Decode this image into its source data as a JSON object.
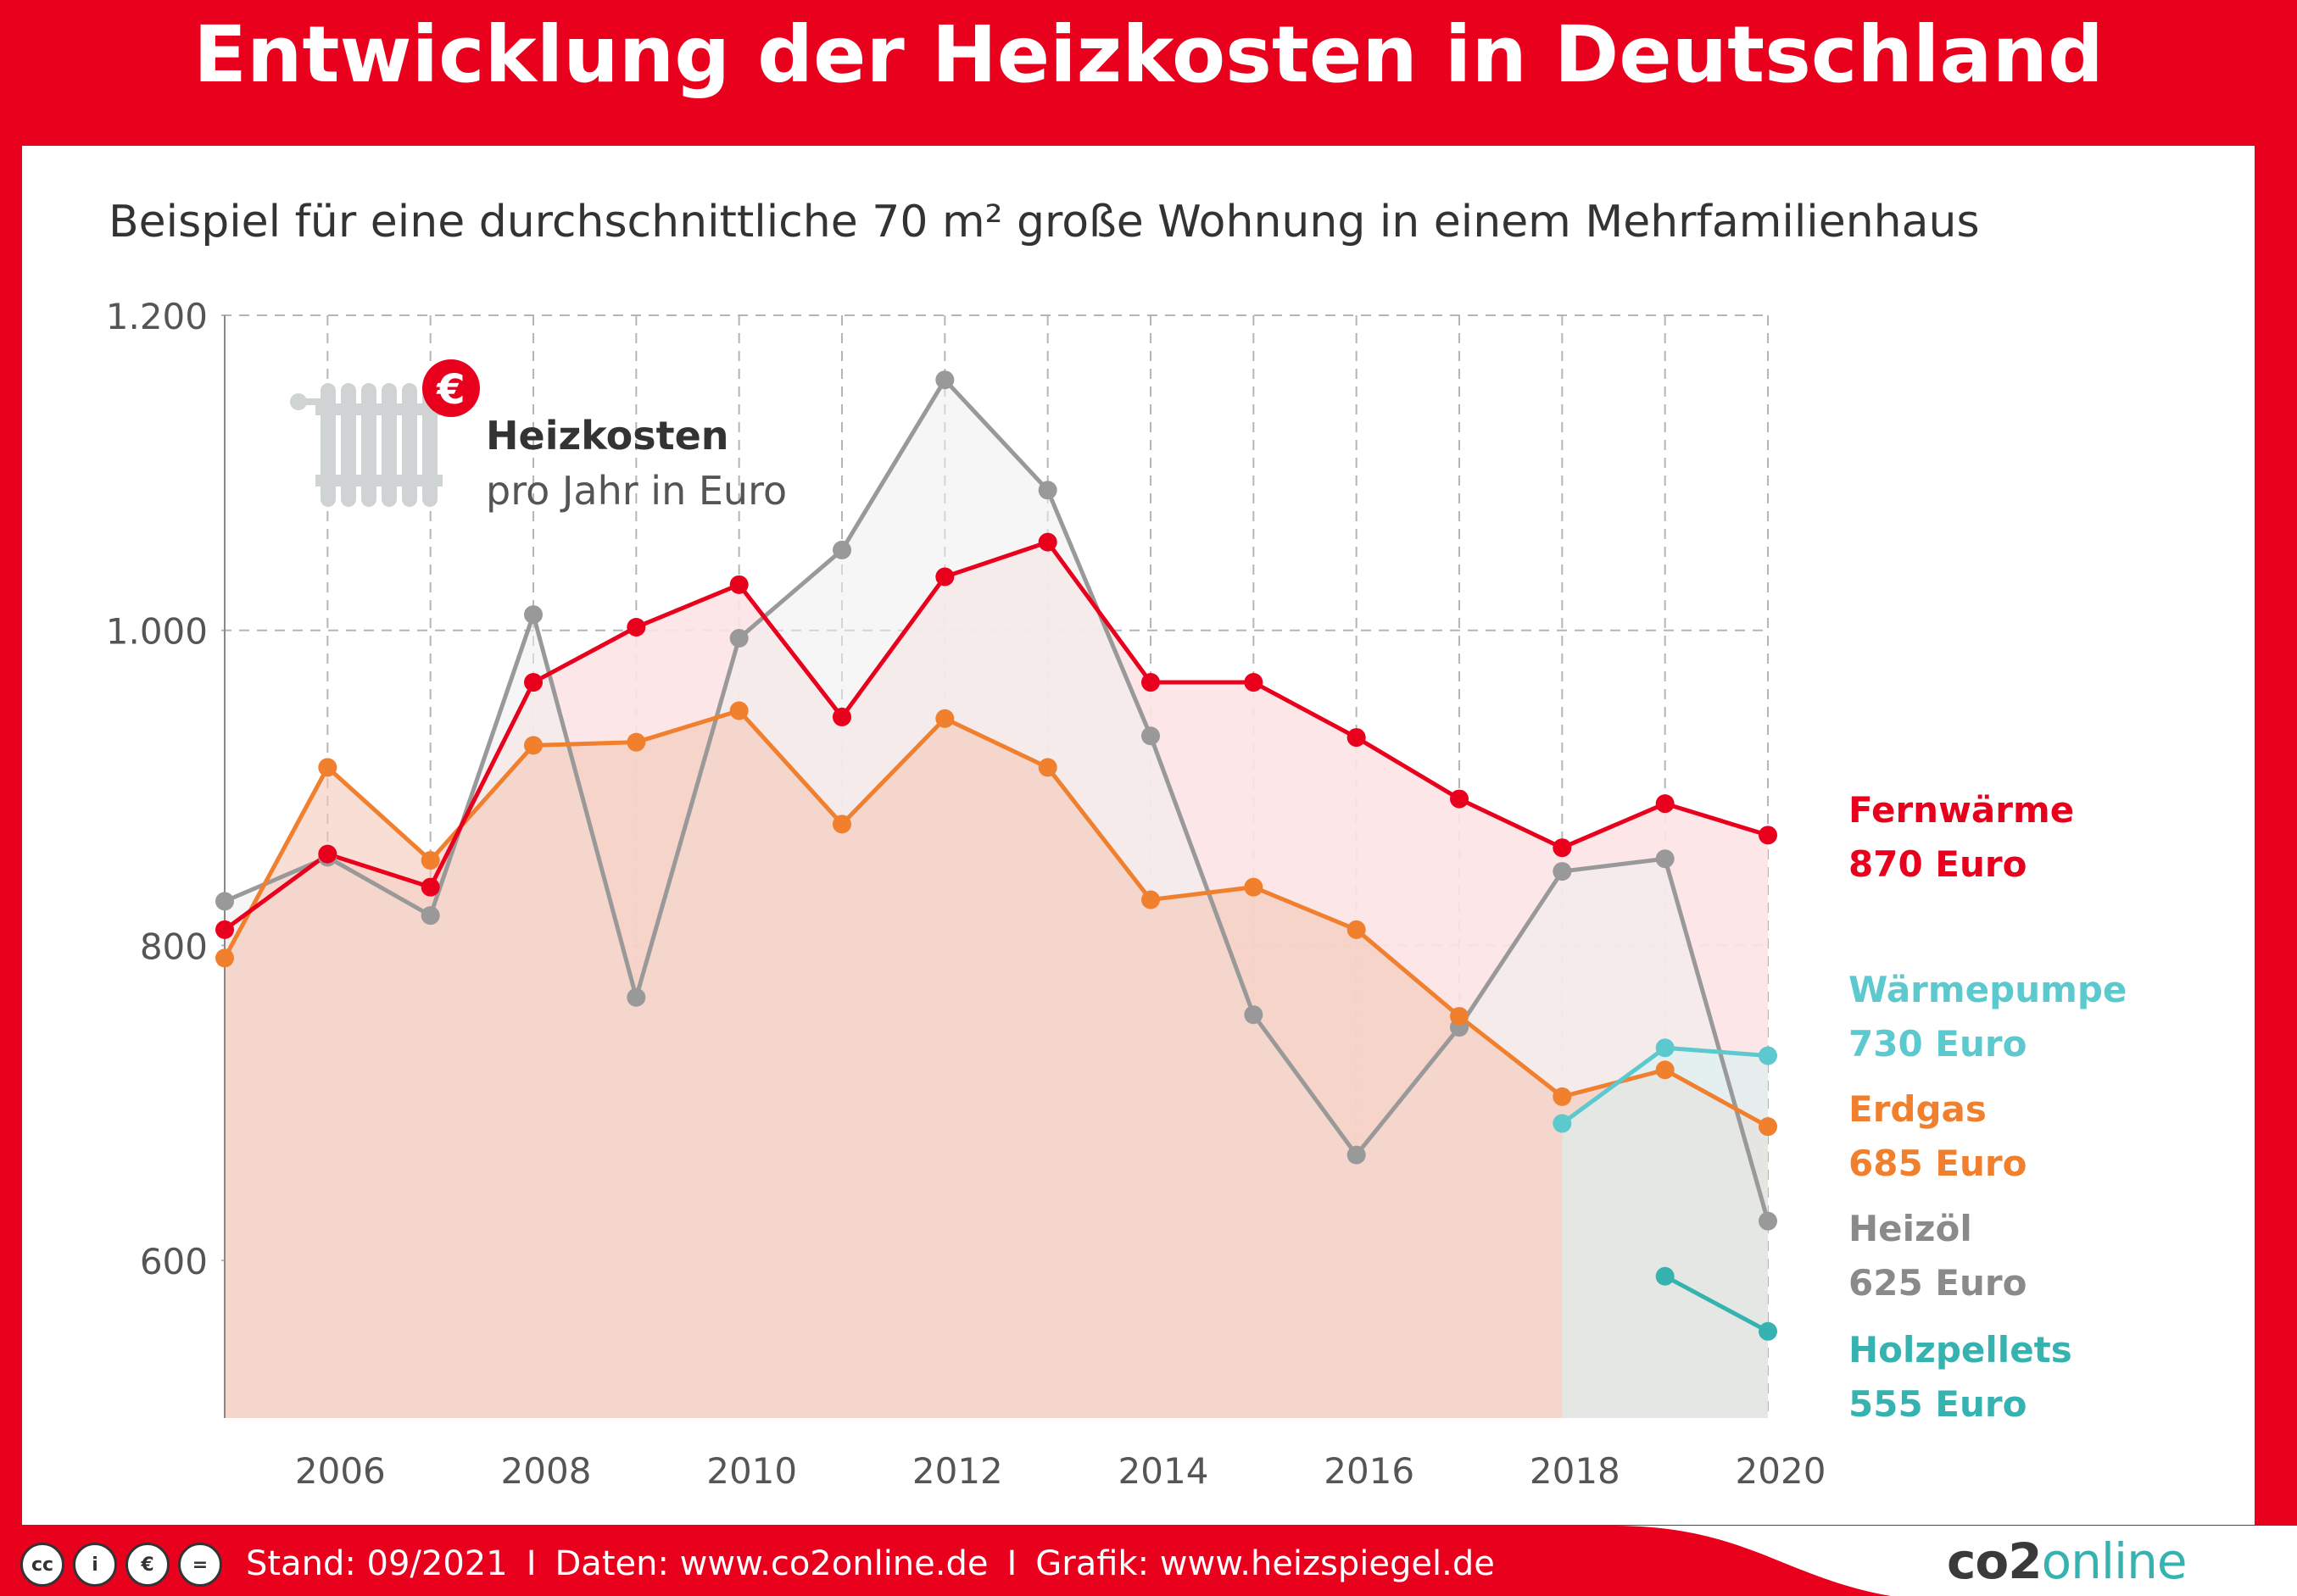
{
  "header": {
    "title": "Entwicklung der Heizkosten in Deutschland"
  },
  "subtitle": "Beispiel für eine durchschnittliche 70 m² große Wohnung in einem Mehrfamilienhaus",
  "legend_box": {
    "title": "Heizkosten",
    "subtitle": "pro Jahr in Euro",
    "icon": "radiator-euro-icon",
    "badge": "€"
  },
  "chart_data": {
    "type": "line",
    "title": "Entwicklung der Heizkosten in Deutschland",
    "subtitle": "Beispiel für eine durchschnittliche 70 m² große Wohnung in einem Mehrfamilienhaus",
    "ylabel": "Heizkosten pro Jahr in Euro",
    "xlim": [
      2005,
      2020
    ],
    "ylim": [
      500,
      1200
    ],
    "y_ticks": [
      600,
      800,
      1000,
      1200
    ],
    "y_tick_labels": [
      "600",
      "800",
      "1.000",
      "1.200"
    ],
    "x_ticks": [
      2006,
      2008,
      2010,
      2012,
      2014,
      2016,
      2018,
      2020
    ],
    "x_tick_labels": [
      "2006",
      "2008",
      "2010",
      "2012",
      "2014",
      "2016",
      "2018",
      "2020"
    ],
    "grid": true,
    "series": [
      {
        "name": "Fernwärme",
        "color": "#e8001d",
        "label_line1": "Fernwärme",
        "label_line2": "870 Euro",
        "x": [
          2005,
          2006,
          2007,
          2008,
          2009,
          2010,
          2011,
          2012,
          2013,
          2014,
          2015,
          2016,
          2017,
          2018,
          2019,
          2020
        ],
        "values": [
          810,
          858,
          837,
          967,
          1002,
          1029,
          945,
          1034,
          1056,
          967,
          967,
          932,
          893,
          862,
          890,
          870
        ]
      },
      {
        "name": "Heizöl",
        "color": "#999999",
        "label_line1": "Heizöl",
        "label_line2": "625 Euro",
        "x": [
          2005,
          2006,
          2007,
          2008,
          2009,
          2010,
          2011,
          2012,
          2013,
          2014,
          2015,
          2016,
          2017,
          2018,
          2019,
          2020
        ],
        "values": [
          828,
          856,
          819,
          1010,
          767,
          995,
          1051,
          1159,
          1089,
          933,
          756,
          667,
          748,
          847,
          855,
          625
        ]
      },
      {
        "name": "Erdgas",
        "color": "#f07f2e",
        "label_line1": "Erdgas",
        "label_line2": "685 Euro",
        "x": [
          2005,
          2006,
          2007,
          2008,
          2009,
          2010,
          2011,
          2012,
          2013,
          2014,
          2015,
          2016,
          2017,
          2018,
          2019,
          2020
        ],
        "values": [
          792,
          913,
          854,
          927,
          929,
          949,
          877,
          944,
          913,
          829,
          837,
          810,
          755,
          704,
          721,
          685
        ]
      },
      {
        "name": "Wärmepumpe",
        "color": "#5cc9cf",
        "label_line1": "Wärmepumpe",
        "label_line2": "730 Euro",
        "x": [
          2018,
          2019,
          2020
        ],
        "values": [
          687,
          735,
          730
        ]
      },
      {
        "name": "Holzpellets",
        "color": "#36b3b0",
        "label_line1": "Holzpellets",
        "label_line2": "555 Euro",
        "x": [
          2019,
          2020
        ],
        "values": [
          590,
          555
        ]
      }
    ]
  },
  "footer": {
    "license_icons": [
      "cc-icon",
      "by-icon",
      "nc-icon",
      "nd-icon"
    ],
    "stand": "Stand: 09/2021",
    "daten": "Daten: www.co2online.de",
    "grafik": "Grafik: www.heizspiegel.de",
    "separator": "I",
    "logo_main": "co2",
    "logo_accent": "online"
  }
}
